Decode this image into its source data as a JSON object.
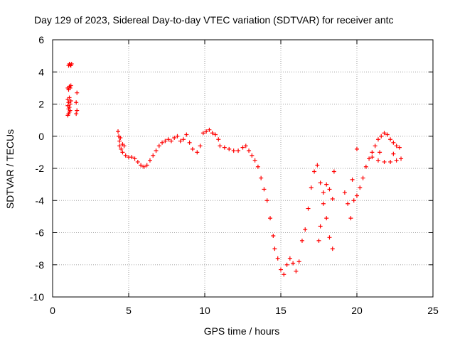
{
  "chart_data": {
    "type": "scatter",
    "title": "Day 129 of 2023, Sidereal Day-to-day VTEC variation (SDTVAR) for receiver antc",
    "xlabel": "GPS time / hours",
    "ylabel": "SDTVAR / TECUs",
    "xlim": [
      0,
      25
    ],
    "ylim": [
      -10,
      6
    ],
    "xticks": [
      0,
      5,
      10,
      15,
      20,
      25
    ],
    "yticks": [
      -10,
      -8,
      -6,
      -4,
      -2,
      0,
      2,
      4,
      6
    ],
    "grid": true,
    "marker": "+",
    "color": "#ff0000",
    "series": [
      {
        "name": "SDTVAR",
        "points": [
          [
            1.05,
            4.4
          ],
          [
            1.1,
            4.5
          ],
          [
            1.15,
            4.45
          ],
          [
            1.2,
            4.4
          ],
          [
            1.25,
            4.5
          ],
          [
            1.0,
            3.0
          ],
          [
            1.05,
            2.9
          ],
          [
            1.1,
            3.1
          ],
          [
            1.15,
            3.0
          ],
          [
            1.2,
            3.15
          ],
          [
            1.0,
            2.3
          ],
          [
            1.05,
            2.1
          ],
          [
            1.1,
            2.4
          ],
          [
            1.0,
            1.9
          ],
          [
            1.05,
            1.7
          ],
          [
            1.1,
            1.5
          ],
          [
            1.0,
            1.3
          ],
          [
            1.05,
            1.4
          ],
          [
            1.15,
            2.0
          ],
          [
            1.2,
            2.2
          ],
          [
            1.1,
            1.8
          ],
          [
            1.15,
            1.6
          ],
          [
            1.6,
            2.7
          ],
          [
            1.55,
            2.1
          ],
          [
            1.6,
            1.6
          ],
          [
            1.55,
            1.4
          ],
          [
            4.3,
            0.3
          ],
          [
            4.35,
            0.0
          ],
          [
            4.4,
            -0.3
          ],
          [
            4.45,
            -0.1
          ],
          [
            4.4,
            -0.6
          ],
          [
            4.5,
            -0.8
          ],
          [
            4.6,
            -0.5
          ],
          [
            4.7,
            -0.6
          ],
          [
            4.6,
            -1.0
          ],
          [
            4.8,
            -1.2
          ],
          [
            5.0,
            -1.3
          ],
          [
            5.2,
            -1.3
          ],
          [
            5.4,
            -1.4
          ],
          [
            5.6,
            -1.6
          ],
          [
            5.8,
            -1.8
          ],
          [
            6.0,
            -1.9
          ],
          [
            6.2,
            -1.8
          ],
          [
            6.4,
            -1.5
          ],
          [
            6.6,
            -1.2
          ],
          [
            6.8,
            -0.9
          ],
          [
            7.0,
            -0.6
          ],
          [
            7.2,
            -0.4
          ],
          [
            7.4,
            -0.3
          ],
          [
            7.6,
            -0.2
          ],
          [
            7.8,
            -0.3
          ],
          [
            8.0,
            -0.1
          ],
          [
            8.2,
            0.0
          ],
          [
            8.4,
            -0.3
          ],
          [
            8.6,
            -0.2
          ],
          [
            8.8,
            0.1
          ],
          [
            9.0,
            -0.4
          ],
          [
            9.2,
            -0.8
          ],
          [
            9.5,
            -1.0
          ],
          [
            9.7,
            -0.6
          ],
          [
            9.9,
            0.2
          ],
          [
            10.1,
            0.3
          ],
          [
            10.3,
            0.4
          ],
          [
            10.5,
            0.2
          ],
          [
            10.7,
            0.1
          ],
          [
            10.9,
            -0.2
          ],
          [
            11.0,
            -0.6
          ],
          [
            11.3,
            -0.7
          ],
          [
            11.6,
            -0.8
          ],
          [
            11.9,
            -0.9
          ],
          [
            12.2,
            -0.9
          ],
          [
            12.5,
            -0.7
          ],
          [
            12.7,
            -0.6
          ],
          [
            12.9,
            -0.9
          ],
          [
            13.1,
            -1.2
          ],
          [
            13.3,
            -1.5
          ],
          [
            13.5,
            -1.9
          ],
          [
            13.7,
            -2.6
          ],
          [
            13.9,
            -3.3
          ],
          [
            14.1,
            -4.0
          ],
          [
            14.3,
            -5.1
          ],
          [
            14.5,
            -6.2
          ],
          [
            14.6,
            -7.0
          ],
          [
            14.8,
            -7.6
          ],
          [
            15.0,
            -8.3
          ],
          [
            15.2,
            -8.6
          ],
          [
            15.4,
            -8.0
          ],
          [
            15.6,
            -7.6
          ],
          [
            15.8,
            -7.9
          ],
          [
            16.0,
            -8.4
          ],
          [
            16.2,
            -7.8
          ],
          [
            16.4,
            -6.5
          ],
          [
            16.6,
            -5.8
          ],
          [
            16.8,
            -4.5
          ],
          [
            17.0,
            -3.2
          ],
          [
            17.2,
            -2.2
          ],
          [
            17.4,
            -1.8
          ],
          [
            17.6,
            -2.9
          ],
          [
            17.8,
            -4.2
          ],
          [
            18.0,
            -5.1
          ],
          [
            18.2,
            -6.3
          ],
          [
            18.4,
            -7.0
          ],
          [
            17.5,
            -6.5
          ],
          [
            17.6,
            -5.6
          ],
          [
            17.8,
            -3.5
          ],
          [
            18.0,
            -3.0
          ],
          [
            18.2,
            -3.3
          ],
          [
            18.4,
            -3.9
          ],
          [
            18.5,
            -2.2
          ],
          [
            19.2,
            -3.5
          ],
          [
            19.4,
            -4.2
          ],
          [
            19.6,
            -5.1
          ],
          [
            19.8,
            -4.0
          ],
          [
            20.0,
            -3.7
          ],
          [
            20.2,
            -3.2
          ],
          [
            20.4,
            -2.6
          ],
          [
            20.6,
            -1.9
          ],
          [
            20.8,
            -1.4
          ],
          [
            21.0,
            -1.0
          ],
          [
            21.2,
            -0.6
          ],
          [
            21.4,
            -0.2
          ],
          [
            21.6,
            0.0
          ],
          [
            21.8,
            0.2
          ],
          [
            22.0,
            0.1
          ],
          [
            22.2,
            -0.2
          ],
          [
            22.4,
            -0.4
          ],
          [
            22.6,
            -0.6
          ],
          [
            22.8,
            -0.7
          ],
          [
            21.0,
            -1.3
          ],
          [
            21.4,
            -1.5
          ],
          [
            21.8,
            -1.6
          ],
          [
            22.2,
            -1.6
          ],
          [
            22.6,
            -1.5
          ],
          [
            20.0,
            -0.8
          ],
          [
            19.7,
            -2.7
          ],
          [
            21.5,
            -1.0
          ],
          [
            22.4,
            -1.1
          ],
          [
            22.9,
            -1.4
          ]
        ]
      }
    ]
  }
}
